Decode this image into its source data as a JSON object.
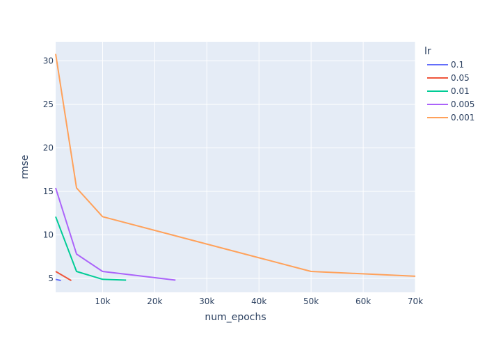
{
  "chart_data": {
    "type": "line",
    "title": "",
    "xlabel": "num_epochs",
    "ylabel": "rmse",
    "xlim": [
      1000,
      70000
    ],
    "ylim": [
      3.4,
      32.2
    ],
    "x_ticks": [
      10000,
      20000,
      30000,
      40000,
      50000,
      60000,
      70000
    ],
    "x_tick_labels": [
      "10k",
      "20k",
      "30k",
      "40k",
      "50k",
      "60k",
      "70k"
    ],
    "y_ticks": [
      5,
      10,
      15,
      20,
      25,
      30
    ],
    "y_tick_labels": [
      "5",
      "10",
      "15",
      "20",
      "25",
      "30"
    ],
    "grid": true,
    "legend": {
      "title": "lr",
      "placement": "right"
    },
    "series": [
      {
        "name": "0.1",
        "color": "#636efa",
        "x": [
          1000,
          2000
        ],
        "y": [
          4.9,
          4.75
        ]
      },
      {
        "name": "0.05",
        "color": "#ef553b",
        "x": [
          1000,
          4000
        ],
        "y": [
          5.8,
          4.75
        ]
      },
      {
        "name": "0.01",
        "color": "#00cc96",
        "x": [
          1000,
          5000,
          10000,
          14500
        ],
        "y": [
          12.1,
          5.8,
          4.9,
          4.8
        ]
      },
      {
        "name": "0.005",
        "color": "#ab63fa",
        "x": [
          1000,
          5000,
          10000,
          24000
        ],
        "y": [
          15.4,
          7.8,
          5.8,
          4.8
        ]
      },
      {
        "name": "0.001",
        "color": "#ffa15a",
        "x": [
          1000,
          5000,
          10000,
          50000,
          70000
        ],
        "y": [
          30.8,
          15.4,
          12.1,
          5.8,
          5.25
        ]
      }
    ]
  }
}
